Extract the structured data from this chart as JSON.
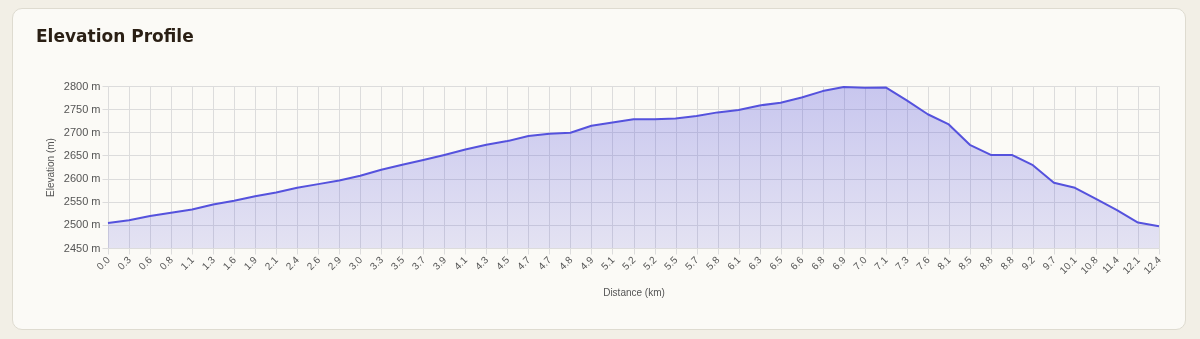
{
  "chart_data": {
    "type": "area",
    "title": "Elevation Profile",
    "xlabel": "Distance (km)",
    "ylabel": "Elevation (m)",
    "categories": [
      "0.0",
      "0.3",
      "0.6",
      "0.8",
      "1.1",
      "1.3",
      "1.6",
      "1.9",
      "2.1",
      "2.4",
      "2.6",
      "2.9",
      "3.0",
      "3.3",
      "3.5",
      "3.7",
      "3.9",
      "4.1",
      "4.3",
      "4.5",
      "4.7",
      "4.7",
      "4.8",
      "4.9",
      "5.1",
      "5.2",
      "5.2",
      "5.5",
      "5.7",
      "5.8",
      "6.1",
      "6.3",
      "6.5",
      "6.6",
      "6.8",
      "6.9",
      "7.0",
      "7.1",
      "7.3",
      "7.6",
      "8.1",
      "8.5",
      "8.8",
      "8.8",
      "9.2",
      "9.7",
      "10.1",
      "10.8",
      "11.4",
      "12.1",
      "12.4"
    ],
    "series": [
      {
        "color": "#5552dd",
        "values": [
          2504,
          2510,
          2519,
          2526,
          2533,
          2544,
          2552,
          2562,
          2570,
          2580,
          2588,
          2596,
          2606,
          2619,
          2630,
          2640,
          2651,
          2663,
          2673,
          2681,
          2692,
          2697,
          2699,
          2714,
          2721,
          2728,
          2728,
          2730,
          2735,
          2743,
          2748,
          2758,
          2764,
          2775,
          2789,
          2798,
          2796,
          2797,
          2769,
          2739,
          2717,
          2673,
          2651,
          2651,
          2629,
          2591,
          2580,
          2556,
          2532,
          2505,
          2497
        ]
      }
    ],
    "ylim": [
      2450,
      2800
    ],
    "yticks": [
      {
        "value": 2450,
        "label": "2450 m"
      },
      {
        "value": 2500,
        "label": "2500 m"
      },
      {
        "value": 2550,
        "label": "2550 m"
      },
      {
        "value": 2600,
        "label": "2600 m"
      },
      {
        "value": 2650,
        "label": "2650 m"
      },
      {
        "value": 2700,
        "label": "2700 m"
      },
      {
        "value": 2750,
        "label": "2750 m"
      },
      {
        "value": 2800,
        "label": "2800 m"
      }
    ],
    "grid": true,
    "marker": "none"
  }
}
